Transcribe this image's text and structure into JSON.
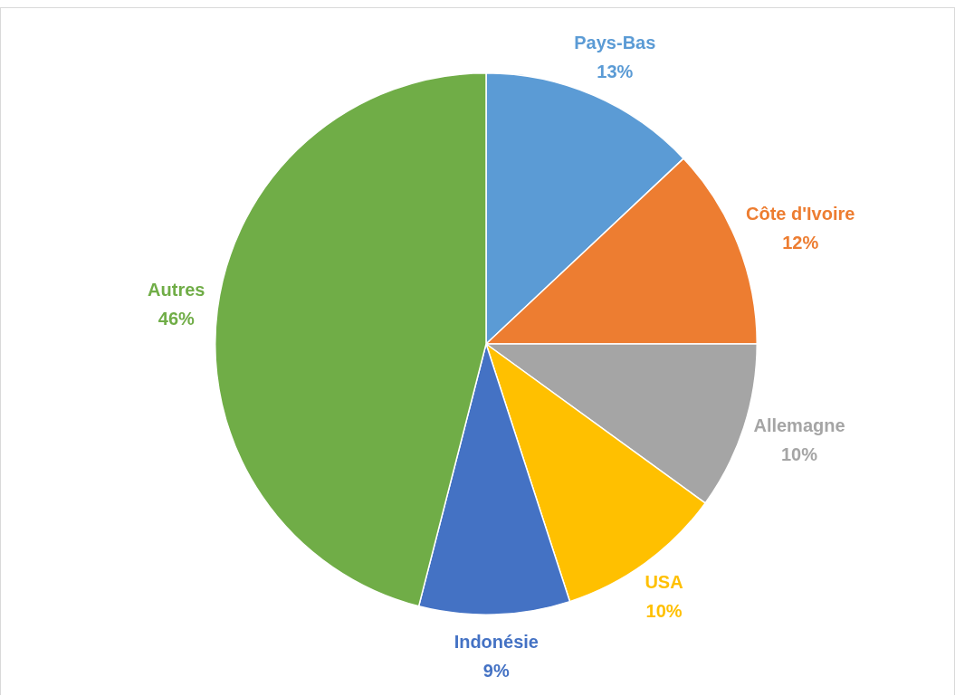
{
  "chart_data": {
    "type": "pie",
    "categories": [
      "Pays-Bas",
      "Côte d'Ivoire",
      "Allemagne",
      "USA",
      "Indonésie",
      "Autres"
    ],
    "values": [
      13,
      12,
      10,
      10,
      9,
      46
    ],
    "value_labels": [
      "13%",
      "12%",
      "10%",
      "10%",
      "9%",
      "46%"
    ],
    "colors": [
      "#5b9bd5",
      "#ed7d31",
      "#a5a5a5",
      "#ffc000",
      "#4472c4",
      "#70ad47"
    ],
    "legend": false
  }
}
